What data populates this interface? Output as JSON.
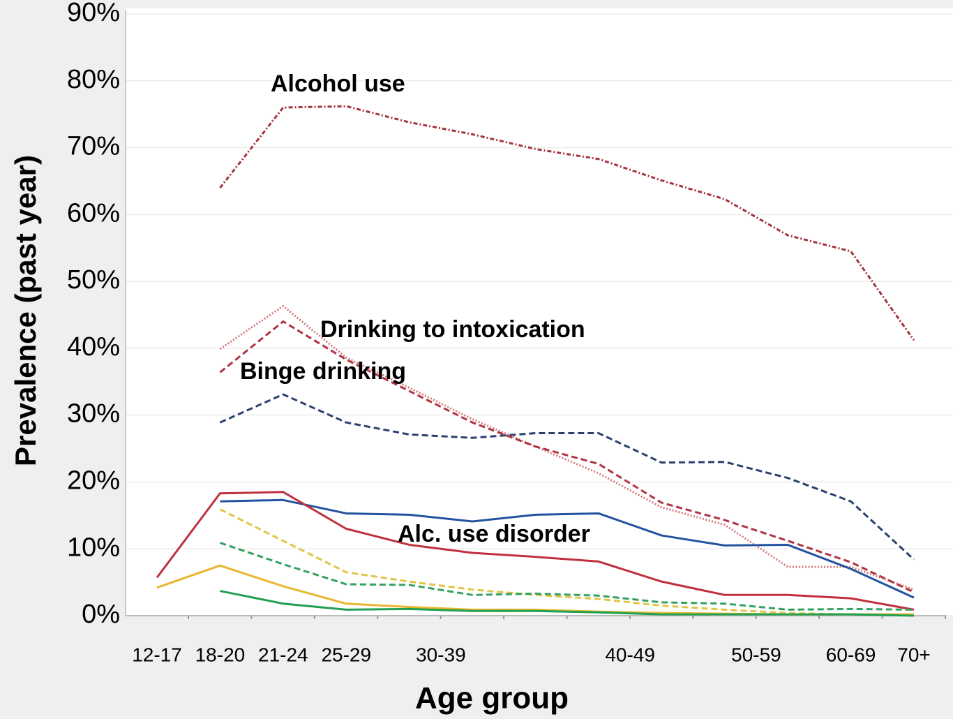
{
  "chart_data": {
    "type": "line",
    "x_label": "Age group",
    "y_label": "Prevalence (past year)",
    "categories": [
      "12-17",
      "18-20",
      "21-24",
      "25-29",
      "30-39",
      null,
      null,
      "40-49",
      null,
      "50-59",
      null,
      "60-69",
      "70+"
    ],
    "ylim": [
      0,
      90
    ],
    "yticks": [
      {
        "value": 0,
        "label": "0%"
      },
      {
        "value": 10,
        "label": "10%"
      },
      {
        "value": 20,
        "label": "20%"
      },
      {
        "value": 30,
        "label": "30%"
      },
      {
        "value": 40,
        "label": "40%"
      },
      {
        "value": 50,
        "label": "50%"
      },
      {
        "value": 60,
        "label": "60%"
      },
      {
        "value": 70,
        "label": "70%"
      },
      {
        "value": 80,
        "label": "80%"
      },
      {
        "value": 90,
        "label": "90%"
      }
    ],
    "grid": true,
    "annotations": [
      "Alcohol use",
      "Drinking to intoxication",
      "Binge drinking",
      "Alc. use disorder"
    ],
    "series": [
      {
        "color": "#a4323e",
        "style": "dashdot",
        "values": [
          null,
          64,
          76,
          76.2,
          73.8,
          72,
          69.8,
          68.3,
          65.1,
          62.3,
          56.9,
          54.5,
          41.2
        ]
      },
      {
        "color": "#d47a7a",
        "style": "dotted",
        "values": [
          null,
          39.9,
          46.3,
          38.6,
          34.1,
          29.4,
          25.3,
          21.3,
          16.2,
          13.6,
          7.3,
          7.3,
          3.9
        ]
      },
      {
        "color": "#b03444",
        "style": "dashed",
        "values": [
          null,
          36.4,
          44,
          38.3,
          33.6,
          28.9,
          25.3,
          22.7,
          16.9,
          14.3,
          11.2,
          8,
          3.5
        ]
      },
      {
        "color": "#2c3f6e",
        "style": "dashed",
        "values": [
          null,
          28.9,
          33.1,
          28.9,
          27.1,
          26.6,
          27.3,
          27.3,
          22.9,
          23,
          20.6,
          17.1,
          8.4
        ]
      },
      {
        "color": "#2352a0",
        "style": "solid",
        "values": [
          null,
          17.1,
          17.3,
          15.3,
          15.1,
          14.1,
          15.1,
          15.3,
          12,
          10.5,
          10.6,
          7,
          2.7
        ]
      },
      {
        "color": "#c0303e",
        "style": "solid",
        "values": [
          5.7,
          18.3,
          18.5,
          13,
          10.6,
          9.4,
          8.8,
          8.1,
          5.1,
          3.1,
          3.1,
          2.6,
          0.9
        ]
      },
      {
        "color": "#e2c545",
        "style": "dashed",
        "values": [
          null,
          15.9,
          11.2,
          6.5,
          5.1,
          3.9,
          3.1,
          2.5,
          1.5,
          0.9,
          0.4,
          0.2,
          0.2
        ]
      },
      {
        "color": "#34a062",
        "style": "dashed",
        "values": [
          null,
          10.9,
          7.7,
          4.7,
          4.6,
          3.1,
          3.3,
          3,
          2,
          1.8,
          0.9,
          1,
          0.9
        ]
      },
      {
        "color": "#e8b630",
        "style": "solid",
        "values": [
          4.2,
          7.5,
          4.4,
          1.8,
          1.3,
          0.9,
          0.9,
          0.6,
          0.4,
          0.3,
          0.2,
          0.2,
          0.2
        ]
      },
      {
        "color": "#22a052",
        "style": "solid",
        "values": [
          null,
          3.7,
          1.8,
          0.9,
          1,
          0.7,
          0.7,
          0.5,
          0.2,
          0.2,
          0.2,
          0.2,
          0
        ]
      }
    ]
  }
}
